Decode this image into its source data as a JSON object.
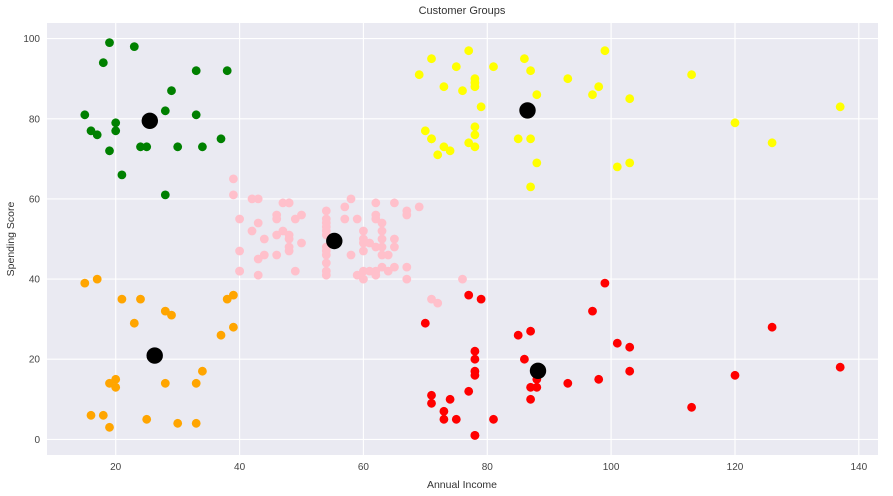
{
  "title": "Customer Groups",
  "style": {
    "figure_bg": "#ffffff",
    "plot_bg": "#eaeaf2",
    "grid_color": "#ffffff",
    "text_color": "#333333",
    "tick_color": "#444444"
  },
  "chart_data": {
    "type": "scatter",
    "title": "Customer Groups",
    "xlabel": "Annual Income",
    "ylabel": "Spending Score",
    "xlim": [
      8.9,
      143.1
    ],
    "ylim": [
      -3.9,
      103.9
    ],
    "x_ticks": [
      20,
      40,
      60,
      80,
      100,
      120,
      140
    ],
    "y_ticks": [
      0,
      20,
      40,
      60,
      80,
      100
    ],
    "grid": true,
    "legend": false,
    "background": "#eaeaf2",
    "grid_color": "#ffffff",
    "series": [
      {
        "name": "cluster-low-income-high-score",
        "color": "#008000",
        "marker_radius": 4.4,
        "points": [
          [
            15,
            81
          ],
          [
            16,
            77
          ],
          [
            17,
            76
          ],
          [
            18,
            94
          ],
          [
            19,
            72
          ],
          [
            19,
            99
          ],
          [
            20,
            77
          ],
          [
            20,
            79
          ],
          [
            21,
            66
          ],
          [
            23,
            98
          ],
          [
            24,
            73
          ],
          [
            25,
            73
          ],
          [
            28,
            82
          ],
          [
            28,
            61
          ],
          [
            29,
            87
          ],
          [
            30,
            73
          ],
          [
            33,
            92
          ],
          [
            33,
            81
          ],
          [
            34,
            73
          ],
          [
            37,
            75
          ],
          [
            38,
            92
          ]
        ]
      },
      {
        "name": "cluster-low-income-low-score",
        "color": "#ffa500",
        "marker_radius": 4.4,
        "points": [
          [
            15,
            39
          ],
          [
            16,
            6
          ],
          [
            17,
            40
          ],
          [
            18,
            6
          ],
          [
            19,
            3
          ],
          [
            19,
            14
          ],
          [
            20,
            15
          ],
          [
            20,
            13
          ],
          [
            21,
            35
          ],
          [
            23,
            29
          ],
          [
            24,
            35
          ],
          [
            25,
            5
          ],
          [
            28,
            14
          ],
          [
            28,
            32
          ],
          [
            29,
            31
          ],
          [
            30,
            4
          ],
          [
            33,
            4
          ],
          [
            33,
            14
          ],
          [
            34,
            17
          ],
          [
            37,
            26
          ],
          [
            38,
            35
          ],
          [
            39,
            36
          ],
          [
            39,
            28
          ]
        ]
      },
      {
        "name": "cluster-mid-income-mid-score",
        "color": "#ffc0cb",
        "marker_radius": 4.4,
        "points": [
          [
            39,
            61
          ],
          [
            39,
            65
          ],
          [
            40,
            55
          ],
          [
            40,
            47
          ],
          [
            40,
            42
          ],
          [
            40,
            42
          ],
          [
            42,
            52
          ],
          [
            42,
            60
          ],
          [
            43,
            54
          ],
          [
            43,
            60
          ],
          [
            43,
            45
          ],
          [
            43,
            41
          ],
          [
            44,
            50
          ],
          [
            44,
            46
          ],
          [
            46,
            51
          ],
          [
            46,
            46
          ],
          [
            46,
            56
          ],
          [
            46,
            55
          ],
          [
            47,
            52
          ],
          [
            47,
            59
          ],
          [
            48,
            51
          ],
          [
            48,
            59
          ],
          [
            48,
            50
          ],
          [
            48,
            48
          ],
          [
            48,
            59
          ],
          [
            48,
            47
          ],
          [
            49,
            55
          ],
          [
            49,
            42
          ],
          [
            50,
            49
          ],
          [
            50,
            56
          ],
          [
            54,
            47
          ],
          [
            54,
            54
          ],
          [
            54,
            53
          ],
          [
            54,
            48
          ],
          [
            54,
            52
          ],
          [
            54,
            42
          ],
          [
            54,
            51
          ],
          [
            54,
            55
          ],
          [
            54,
            41
          ],
          [
            54,
            44
          ],
          [
            54,
            57
          ],
          [
            54,
            46
          ],
          [
            57,
            58
          ],
          [
            57,
            55
          ],
          [
            58,
            60
          ],
          [
            58,
            46
          ],
          [
            59,
            55
          ],
          [
            59,
            41
          ],
          [
            60,
            49
          ],
          [
            60,
            40
          ],
          [
            60,
            42
          ],
          [
            60,
            52
          ],
          [
            60,
            47
          ],
          [
            60,
            50
          ],
          [
            61,
            42
          ],
          [
            61,
            49
          ],
          [
            62,
            41
          ],
          [
            62,
            48
          ],
          [
            62,
            59
          ],
          [
            62,
            55
          ],
          [
            62,
            56
          ],
          [
            62,
            42
          ],
          [
            63,
            50
          ],
          [
            63,
            46
          ],
          [
            63,
            43
          ],
          [
            63,
            48
          ],
          [
            63,
            52
          ],
          [
            63,
            54
          ],
          [
            64,
            42
          ],
          [
            64,
            46
          ],
          [
            65,
            48
          ],
          [
            65,
            50
          ],
          [
            65,
            43
          ],
          [
            65,
            59
          ],
          [
            67,
            43
          ],
          [
            67,
            57
          ],
          [
            67,
            56
          ],
          [
            67,
            40
          ],
          [
            69,
            58
          ],
          [
            71,
            35
          ],
          [
            72,
            34
          ],
          [
            76,
            40
          ]
        ]
      },
      {
        "name": "cluster-high-income-high-score",
        "color": "#ffff00",
        "marker_radius": 4.4,
        "points": [
          [
            69,
            91
          ],
          [
            70,
            77
          ],
          [
            71,
            95
          ],
          [
            71,
            75
          ],
          [
            71,
            75
          ],
          [
            72,
            71
          ],
          [
            73,
            88
          ],
          [
            73,
            73
          ],
          [
            74,
            72
          ],
          [
            75,
            93
          ],
          [
            76,
            87
          ],
          [
            77,
            97
          ],
          [
            77,
            74
          ],
          [
            78,
            90
          ],
          [
            78,
            88
          ],
          [
            78,
            76
          ],
          [
            78,
            89
          ],
          [
            78,
            78
          ],
          [
            78,
            73
          ],
          [
            79,
            83
          ],
          [
            81,
            93
          ],
          [
            85,
            75
          ],
          [
            86,
            95
          ],
          [
            87,
            63
          ],
          [
            87,
            75
          ],
          [
            87,
            92
          ],
          [
            88,
            86
          ],
          [
            88,
            69
          ],
          [
            93,
            90
          ],
          [
            97,
            86
          ],
          [
            98,
            88
          ],
          [
            99,
            97
          ],
          [
            101,
            68
          ],
          [
            103,
            85
          ],
          [
            103,
            69
          ],
          [
            113,
            91
          ],
          [
            120,
            79
          ],
          [
            126,
            74
          ],
          [
            137,
            83
          ]
        ]
      },
      {
        "name": "cluster-high-income-low-score",
        "color": "#ff0000",
        "marker_radius": 4.4,
        "points": [
          [
            70,
            29
          ],
          [
            71,
            11
          ],
          [
            71,
            9
          ],
          [
            73,
            5
          ],
          [
            73,
            7
          ],
          [
            74,
            10
          ],
          [
            75,
            5
          ],
          [
            77,
            12
          ],
          [
            77,
            36
          ],
          [
            78,
            22
          ],
          [
            78,
            17
          ],
          [
            78,
            20
          ],
          [
            78,
            16
          ],
          [
            78,
            1
          ],
          [
            78,
            1
          ],
          [
            79,
            35
          ],
          [
            81,
            5
          ],
          [
            85,
            26
          ],
          [
            86,
            20
          ],
          [
            87,
            27
          ],
          [
            87,
            13
          ],
          [
            87,
            10
          ],
          [
            88,
            13
          ],
          [
            88,
            15
          ],
          [
            93,
            14
          ],
          [
            97,
            32
          ],
          [
            98,
            15
          ],
          [
            99,
            39
          ],
          [
            101,
            24
          ],
          [
            103,
            17
          ],
          [
            103,
            23
          ],
          [
            113,
            8
          ],
          [
            120,
            16
          ],
          [
            126,
            28
          ],
          [
            137,
            18
          ]
        ]
      },
      {
        "name": "centroids",
        "color": "#000000",
        "marker_radius": 8.2,
        "points": [
          [
            25.5,
            79.5
          ],
          [
            26.3,
            20.9
          ],
          [
            55.3,
            49.5
          ],
          [
            86.5,
            82.1
          ],
          [
            88.2,
            17.1
          ]
        ]
      }
    ]
  }
}
